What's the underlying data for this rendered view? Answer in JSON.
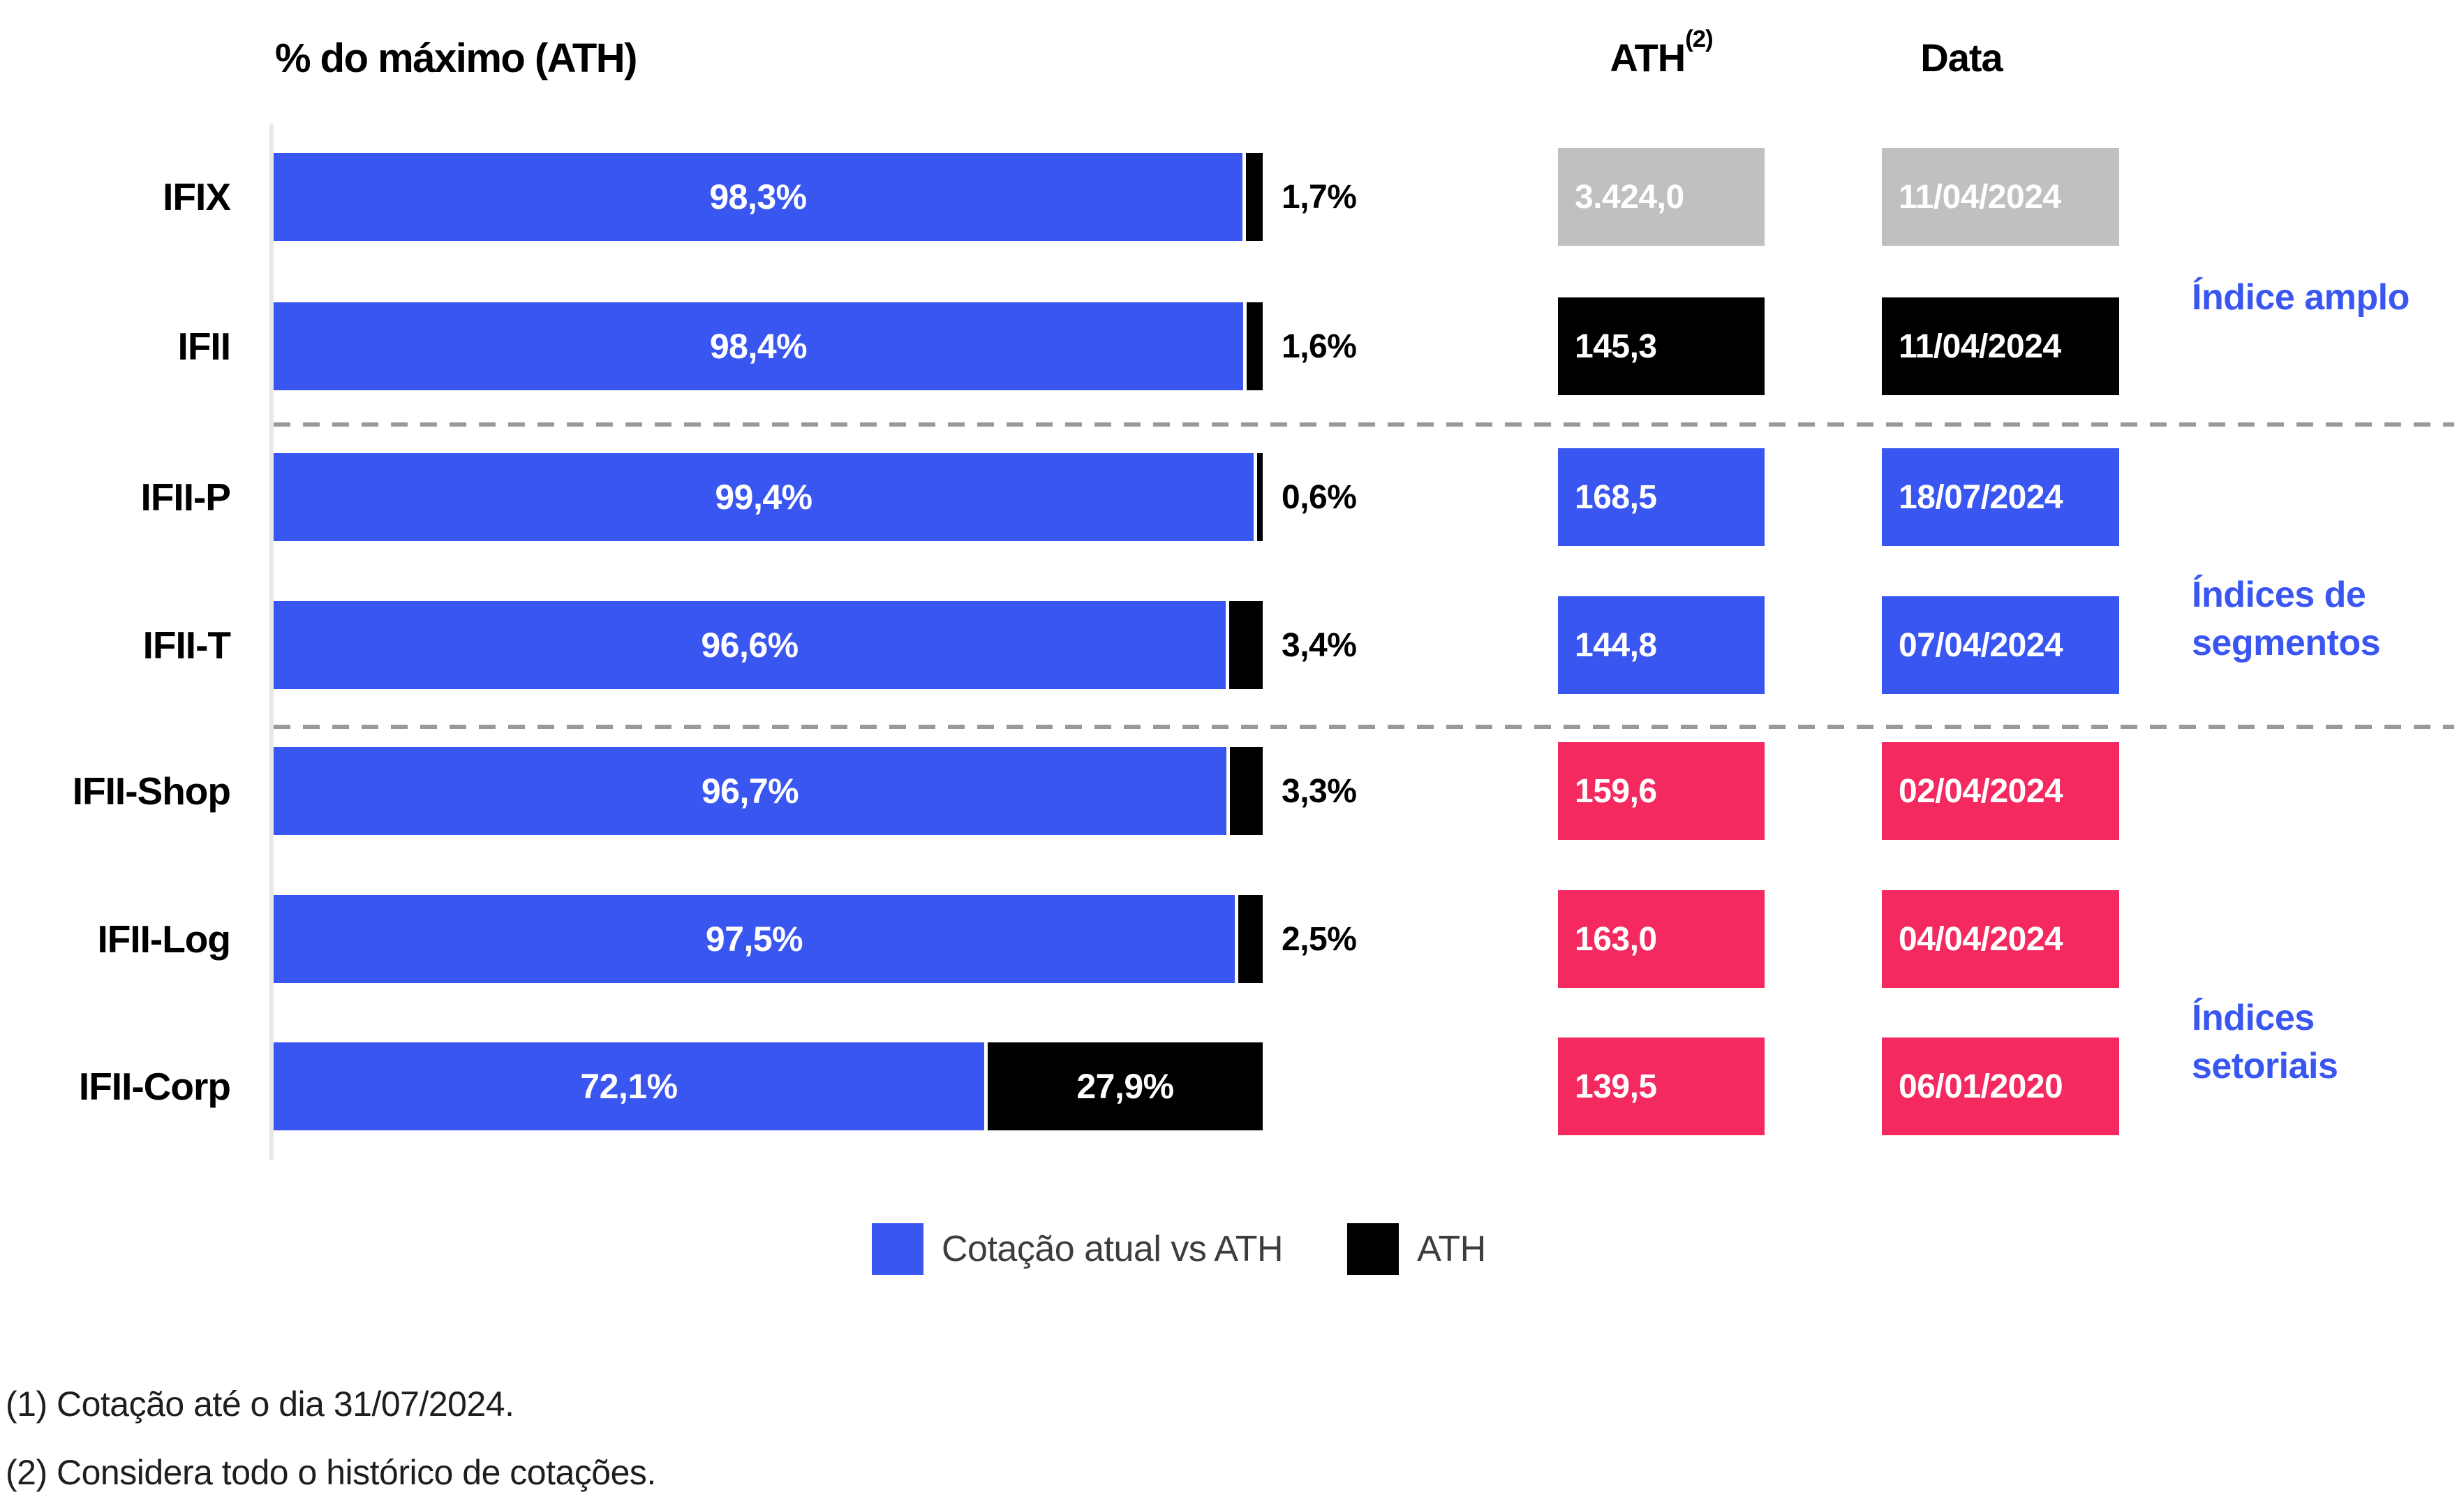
{
  "title": "% do máximo (ATH)",
  "columns": {
    "ath": "ATH",
    "ath_sup": "(2)",
    "date": "Data"
  },
  "rows": [
    {
      "name": "IFIX",
      "current_pct": 98.3,
      "current_label": "98,3%",
      "ath_gap_pct": 1.7,
      "ath_gap_label": "1,7%",
      "gap_label_inside": false,
      "ath_value": "3.424,0",
      "ath_date": "11/04/2024",
      "box_color": "#C0C0C0"
    },
    {
      "name": "IFII",
      "current_pct": 98.4,
      "current_label": "98,4%",
      "ath_gap_pct": 1.6,
      "ath_gap_label": "1,6%",
      "gap_label_inside": false,
      "ath_value": "145,3",
      "ath_date": "11/04/2024",
      "box_color": "#000000"
    },
    {
      "name": "IFII-P",
      "current_pct": 99.4,
      "current_label": "99,4%",
      "ath_gap_pct": 0.6,
      "ath_gap_label": "0,6%",
      "gap_label_inside": false,
      "ath_value": "168,5",
      "ath_date": "18/07/2024",
      "box_color": "#3A56F0"
    },
    {
      "name": "IFII-T",
      "current_pct": 96.6,
      "current_label": "96,6%",
      "ath_gap_pct": 3.4,
      "ath_gap_label": "3,4%",
      "gap_label_inside": false,
      "ath_value": "144,8",
      "ath_date": "07/04/2024",
      "box_color": "#3A56F0"
    },
    {
      "name": "IFII-Shop",
      "current_pct": 96.7,
      "current_label": "96,7%",
      "ath_gap_pct": 3.3,
      "ath_gap_label": "3,3%",
      "gap_label_inside": false,
      "ath_value": "159,6",
      "ath_date": "02/04/2024",
      "box_color": "#F32960"
    },
    {
      "name": "IFII-Log",
      "current_pct": 97.5,
      "current_label": "97,5%",
      "ath_gap_pct": 2.5,
      "ath_gap_label": "2,5%",
      "gap_label_inside": false,
      "ath_value": "163,0",
      "ath_date": "04/04/2024",
      "box_color": "#F32960"
    },
    {
      "name": "IFII-Corp",
      "current_pct": 72.1,
      "current_label": "72,1%",
      "ath_gap_pct": 27.9,
      "ath_gap_label": "27,9%",
      "gap_label_inside": true,
      "ath_value": "139,5",
      "ath_date": "06/01/2020",
      "box_color": "#F32960"
    }
  ],
  "group_labels": [
    {
      "text": "Índice amplo"
    },
    {
      "text": "Índices de\nsegmentos"
    },
    {
      "text": "Índices\nsetoriais"
    }
  ],
  "legend": [
    {
      "label": "Cotação atual vs ATH",
      "color": "#3A56F0"
    },
    {
      "label": "ATH",
      "color": "#000000"
    }
  ],
  "footnotes": [
    "(1) Cotação até o dia 31/07/2024.",
    "(2) Considera todo o histórico de cotações."
  ],
  "colors": {
    "bar_blue": "#3A56F0",
    "bar_black": "#000000",
    "box_gray": "#C0C0C0",
    "box_pink": "#F32960",
    "accent_blue": "#3A56F0",
    "legend_text": "#3D3D3D",
    "dashed_line": "#999999",
    "axis_line": "#E8E8E8"
  },
  "chart_data": {
    "type": "bar",
    "orientation": "horizontal",
    "stacked": true,
    "title": "% do máximo (ATH)",
    "categories": [
      "IFIX",
      "IFII",
      "IFII-P",
      "IFII-T",
      "IFII-Shop",
      "IFII-Log",
      "IFII-Corp"
    ],
    "series": [
      {
        "name": "Cotação atual vs ATH",
        "color": "#3A56F0",
        "values": [
          98.3,
          98.4,
          99.4,
          96.6,
          96.7,
          97.5,
          72.1
        ]
      },
      {
        "name": "ATH",
        "color": "#000000",
        "values": [
          1.7,
          1.6,
          0.6,
          3.4,
          3.3,
          2.5,
          27.9
        ]
      }
    ],
    "ath_values": [
      "3.424,0",
      "145,3",
      "168,5",
      "144,8",
      "159,6",
      "163,0",
      "139,5"
    ],
    "ath_dates": [
      "11/04/2024",
      "11/04/2024",
      "18/07/2024",
      "07/04/2024",
      "02/04/2024",
      "04/04/2024",
      "06/01/2020"
    ],
    "xlim": [
      0,
      100
    ],
    "grid": false,
    "legend_position": "bottom",
    "groups": [
      {
        "label": "Índice amplo",
        "rows": [
          "IFIX",
          "IFII"
        ]
      },
      {
        "label": "Índices de segmentos",
        "rows": [
          "IFII-P",
          "IFII-T"
        ]
      },
      {
        "label": "Índices setoriais",
        "rows": [
          "IFII-Shop",
          "IFII-Log",
          "IFII-Corp"
        ]
      }
    ]
  }
}
